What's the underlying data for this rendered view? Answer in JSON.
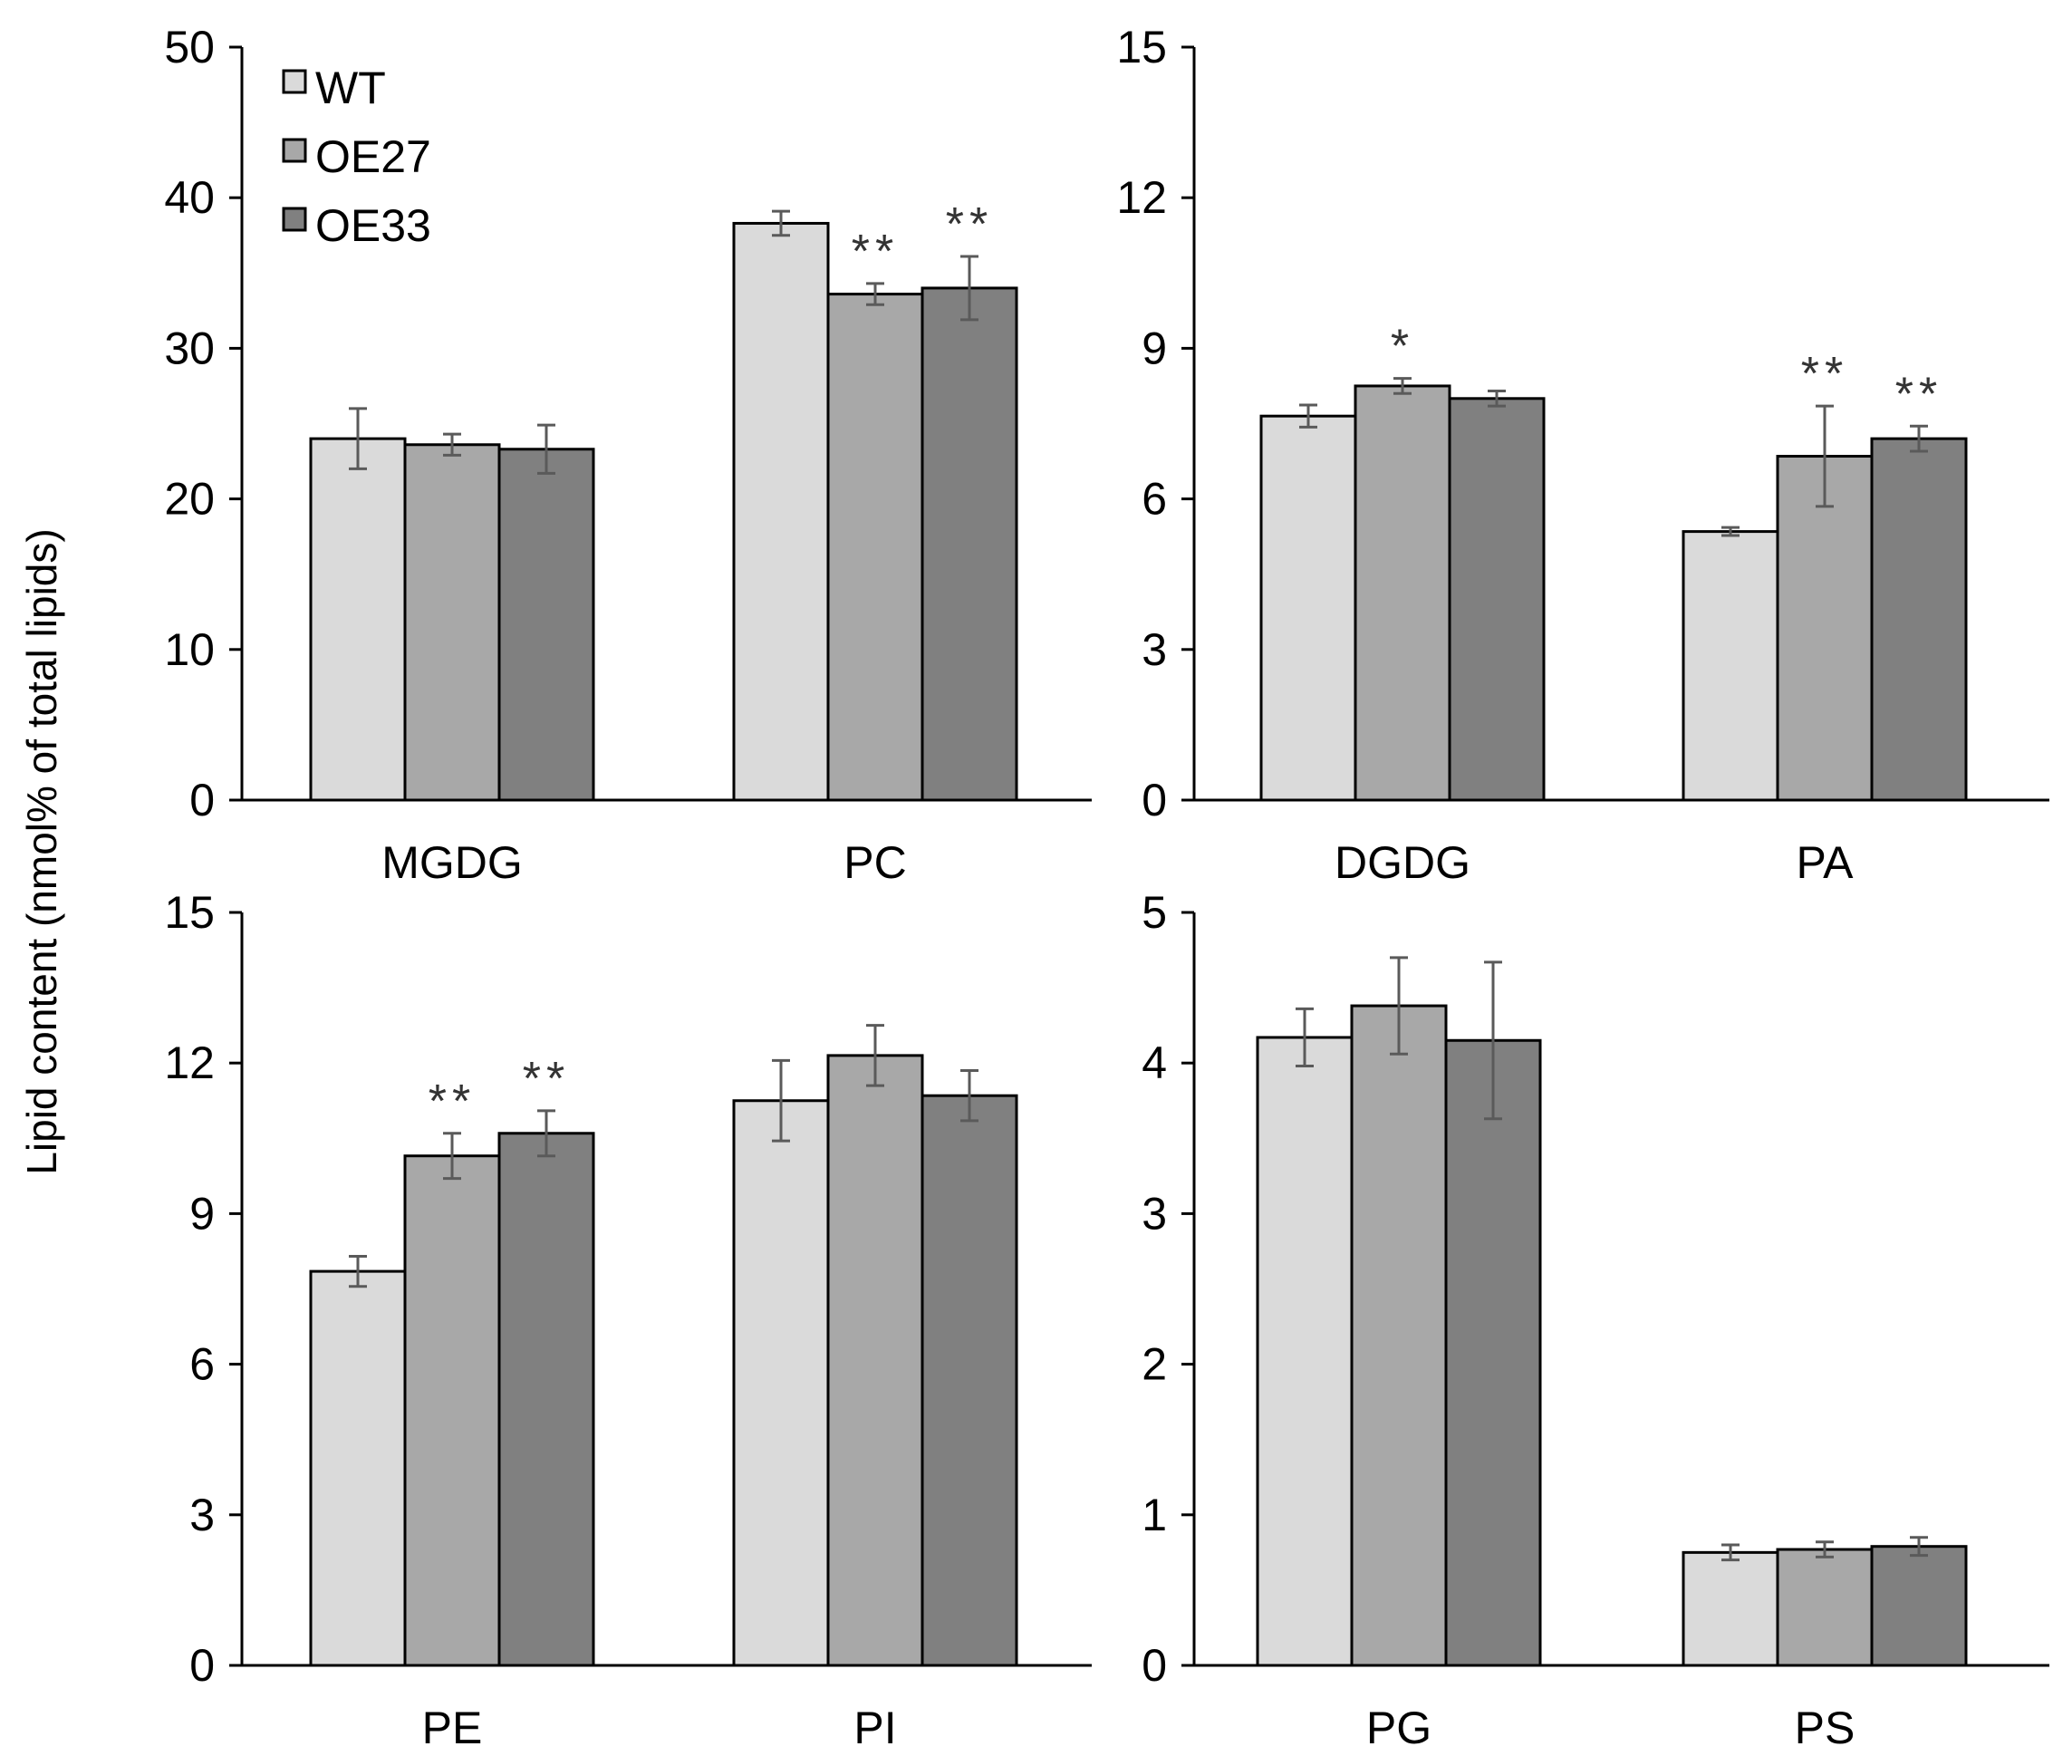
{
  "figure": {
    "ylabel": "Lipid content (nmol% of total lipids)",
    "legend": [
      {
        "name": "WT",
        "color": "#dadada"
      },
      {
        "name": "OE27",
        "color": "#a8a8a8"
      },
      {
        "name": "OE33",
        "color": "#808080"
      }
    ],
    "error_color": "#5a5a5a",
    "axis_color": "#000000"
  },
  "chart_data": [
    {
      "type": "bar",
      "panel": "top-left",
      "categories": [
        "MGDG",
        "PC"
      ],
      "ylim": [
        0,
        50
      ],
      "yticks": [
        "0",
        "10",
        "20",
        "30",
        "40",
        "50"
      ],
      "series": [
        {
          "name": "WT",
          "values": [
            24.0,
            38.3
          ],
          "errors": [
            2.0,
            0.8
          ],
          "marks": [
            "",
            ""
          ]
        },
        {
          "name": "OE27",
          "values": [
            23.6,
            33.6
          ],
          "errors": [
            0.7,
            0.7
          ],
          "marks": [
            "",
            "**"
          ]
        },
        {
          "name": "OE33",
          "values": [
            23.3,
            34.0
          ],
          "errors": [
            1.6,
            2.1
          ],
          "marks": [
            "",
            "**"
          ]
        }
      ]
    },
    {
      "type": "bar",
      "panel": "top-right",
      "categories": [
        "DGDG",
        "PA"
      ],
      "ylim": [
        0,
        15
      ],
      "yticks": [
        "0",
        "3",
        "6",
        "9",
        "12",
        "15"
      ],
      "series": [
        {
          "name": "WT",
          "values": [
            7.65,
            5.35
          ],
          "errors": [
            0.22,
            0.08
          ],
          "marks": [
            "",
            ""
          ]
        },
        {
          "name": "OE27",
          "values": [
            8.25,
            6.85
          ],
          "errors": [
            0.15,
            1.0
          ],
          "marks": [
            "*",
            "**"
          ]
        },
        {
          "name": "OE33",
          "values": [
            8.0,
            7.2
          ],
          "errors": [
            0.15,
            0.25
          ],
          "marks": [
            "",
            "**"
          ]
        }
      ]
    },
    {
      "type": "bar",
      "panel": "bottom-left",
      "categories": [
        "PE",
        "PI"
      ],
      "ylim": [
        0,
        15
      ],
      "yticks": [
        "0",
        "3",
        "6",
        "9",
        "12",
        "15"
      ],
      "series": [
        {
          "name": "WT",
          "values": [
            7.85,
            11.25
          ],
          "errors": [
            0.3,
            0.8
          ],
          "marks": [
            "",
            ""
          ]
        },
        {
          "name": "OE27",
          "values": [
            10.15,
            12.15
          ],
          "errors": [
            0.45,
            0.6
          ],
          "marks": [
            "**",
            ""
          ]
        },
        {
          "name": "OE33",
          "values": [
            10.6,
            11.35
          ],
          "errors": [
            0.45,
            0.5
          ],
          "marks": [
            "**",
            ""
          ]
        }
      ]
    },
    {
      "type": "bar",
      "panel": "bottom-right",
      "categories": [
        "PG",
        "PS"
      ],
      "ylim": [
        0,
        5
      ],
      "yticks": [
        "0",
        "1",
        "2",
        "3",
        "4",
        "5"
      ],
      "series": [
        {
          "name": "WT",
          "values": [
            4.17,
            0.75
          ],
          "errors": [
            0.19,
            0.05
          ],
          "marks": [
            "",
            ""
          ]
        },
        {
          "name": "OE27",
          "values": [
            4.38,
            0.77
          ],
          "errors": [
            0.32,
            0.05
          ],
          "marks": [
            "",
            ""
          ]
        },
        {
          "name": "OE33",
          "values": [
            4.15,
            0.79
          ],
          "errors": [
            0.52,
            0.06
          ],
          "marks": [
            "",
            ""
          ]
        }
      ]
    }
  ]
}
